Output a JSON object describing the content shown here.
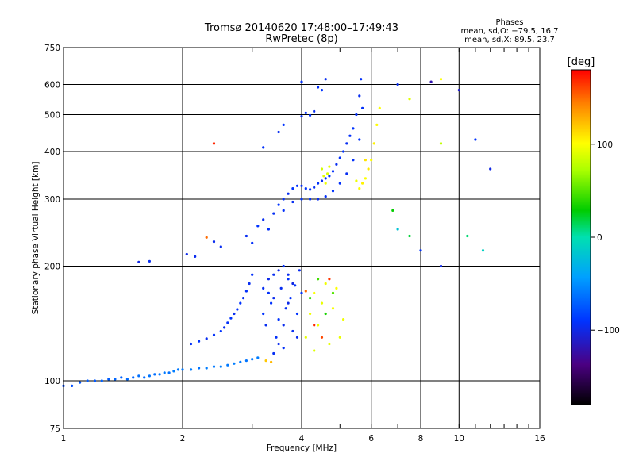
{
  "header": {
    "title_line1": "Tromsø 20140620 17:48:00–17:49:43",
    "title_line2": "RwPretec (8p)"
  },
  "phase_box": {
    "label": "Phases",
    "line_o": "mean, sd,O: −79.5, 16.7",
    "line_x": "mean, sd,X:  89.5, 23.7"
  },
  "colorbar": {
    "label": "[deg]",
    "range": [
      -180,
      180
    ],
    "ticks": [
      {
        "value": 100,
        "label": "100"
      },
      {
        "value": 0,
        "label": "0"
      },
      {
        "value": -100,
        "label": "−100"
      }
    ]
  },
  "chart_data": {
    "type": "scatter",
    "title": "Tromsø 20140620 17:48:00–17:49:43",
    "subtitle": "RwPretec (8p)",
    "xlabel": "Frequency [MHz]",
    "ylabel": "Stationary phase Virtual Height [km]",
    "xscale": "log",
    "yscale": "log",
    "xlim": [
      1,
      16
    ],
    "ylim": [
      75,
      750
    ],
    "grid": true,
    "x_ticks": [
      {
        "value": 1,
        "label": "1"
      },
      {
        "value": 2,
        "label": "2"
      },
      {
        "value": 4,
        "label": "4"
      },
      {
        "value": 6,
        "label": "6"
      },
      {
        "value": 8,
        "label": "8"
      },
      {
        "value": 10,
        "label": "10"
      },
      {
        "value": 16,
        "label": "16"
      }
    ],
    "y_ticks": [
      {
        "value": 75,
        "label": "75"
      },
      {
        "value": 100,
        "label": "100"
      },
      {
        "value": 200,
        "label": "200"
      },
      {
        "value": 300,
        "label": "300"
      },
      {
        "value": 400,
        "label": "400"
      },
      {
        "value": 500,
        "label": "500"
      },
      {
        "value": 600,
        "label": "600"
      },
      {
        "value": 750,
        "label": "750"
      }
    ],
    "series": [
      {
        "color_by": "phase",
        "points": [
          [
            1.0,
            97,
            -80
          ],
          [
            1.05,
            97,
            -78
          ],
          [
            1.1,
            99,
            -75
          ],
          [
            1.15,
            100,
            -72
          ],
          [
            1.2,
            100,
            -74
          ],
          [
            1.25,
            100,
            -70
          ],
          [
            1.3,
            101,
            -72
          ],
          [
            1.35,
            101,
            -68
          ],
          [
            1.4,
            102,
            -70
          ],
          [
            1.45,
            101,
            -66
          ],
          [
            1.5,
            102,
            -68
          ],
          [
            1.55,
            103,
            -64
          ],
          [
            1.6,
            102,
            -66
          ],
          [
            1.65,
            103,
            -62
          ],
          [
            1.7,
            104,
            -65
          ],
          [
            1.75,
            104,
            -62
          ],
          [
            1.8,
            105,
            -60
          ],
          [
            1.85,
            105,
            -63
          ],
          [
            1.9,
            106,
            -58
          ],
          [
            1.95,
            107,
            -60
          ],
          [
            2.0,
            107,
            -60
          ],
          [
            2.1,
            107,
            -58
          ],
          [
            2.2,
            108,
            -62
          ],
          [
            2.3,
            108,
            -58
          ],
          [
            2.4,
            109,
            -60
          ],
          [
            2.5,
            109,
            -57
          ],
          [
            2.6,
            110,
            -60
          ],
          [
            2.7,
            111,
            -58
          ],
          [
            2.8,
            112,
            -60
          ],
          [
            2.9,
            113,
            -62
          ],
          [
            3.0,
            114,
            -60
          ],
          [
            3.1,
            115,
            -58
          ],
          [
            3.25,
            113,
            120
          ],
          [
            3.35,
            112,
            125
          ],
          [
            2.1,
            125,
            -92
          ],
          [
            2.2,
            127,
            -90
          ],
          [
            2.3,
            129,
            -95
          ],
          [
            2.4,
            132,
            -92
          ],
          [
            2.5,
            135,
            -90
          ],
          [
            2.55,
            138,
            -95
          ],
          [
            2.6,
            142,
            -92
          ],
          [
            2.65,
            146,
            -90
          ],
          [
            2.7,
            150,
            -95
          ],
          [
            2.75,
            154,
            -92
          ],
          [
            2.8,
            160,
            -90
          ],
          [
            2.85,
            165,
            -94
          ],
          [
            2.9,
            172,
            -92
          ],
          [
            2.95,
            180,
            -95
          ],
          [
            3.0,
            190,
            -92
          ],
          [
            3.2,
            150,
            -90
          ],
          [
            3.25,
            140,
            -95
          ],
          [
            3.3,
            170,
            -92
          ],
          [
            3.35,
            160,
            -90
          ],
          [
            3.4,
            190,
            -95
          ],
          [
            3.45,
            130,
            -92
          ],
          [
            3.5,
            145,
            -90
          ],
          [
            3.55,
            175,
            -95
          ],
          [
            3.6,
            200,
            -92
          ],
          [
            3.65,
            155,
            -94
          ],
          [
            3.7,
            185,
            -90
          ],
          [
            3.75,
            165,
            -92
          ],
          [
            3.8,
            135,
            -95
          ],
          [
            3.85,
            178,
            -92
          ],
          [
            3.9,
            150,
            -90
          ],
          [
            3.95,
            195,
            -96
          ],
          [
            4.0,
            170,
            -90
          ],
          [
            3.3,
            185,
            -98
          ],
          [
            3.4,
            165,
            -96
          ],
          [
            3.5,
            195,
            -100
          ],
          [
            3.6,
            140,
            -96
          ],
          [
            3.7,
            160,
            -98
          ],
          [
            3.8,
            180,
            -100
          ],
          [
            3.9,
            130,
            -96
          ],
          [
            3.5,
            125,
            -96
          ],
          [
            3.4,
            118,
            -94
          ],
          [
            3.6,
            122,
            -92
          ],
          [
            3.7,
            190,
            -96
          ],
          [
            3.2,
            175,
            -94
          ],
          [
            2.9,
            240,
            -95
          ],
          [
            3.0,
            230,
            -92
          ],
          [
            3.1,
            255,
            -90
          ],
          [
            3.2,
            265,
            -95
          ],
          [
            3.3,
            250,
            -92
          ],
          [
            3.4,
            275,
            -94
          ],
          [
            3.5,
            290,
            -90
          ],
          [
            3.6,
            300,
            -92
          ],
          [
            3.7,
            310,
            -95
          ],
          [
            3.8,
            320,
            -90
          ],
          [
            3.9,
            325,
            -92
          ],
          [
            4.0,
            325,
            -95
          ],
          [
            4.1,
            320,
            -90
          ],
          [
            4.2,
            318,
            -92
          ],
          [
            4.3,
            322,
            -94
          ],
          [
            4.4,
            330,
            -92
          ],
          [
            4.5,
            335,
            -95
          ],
          [
            4.6,
            340,
            -92
          ],
          [
            4.7,
            345,
            -90
          ],
          [
            4.8,
            355,
            -92
          ],
          [
            4.9,
            370,
            -95
          ],
          [
            5.0,
            385,
            -92
          ],
          [
            5.1,
            400,
            -90
          ],
          [
            5.2,
            420,
            -95
          ],
          [
            5.3,
            440,
            -92
          ],
          [
            5.4,
            460,
            -90
          ],
          [
            5.5,
            500,
            -92
          ],
          [
            5.6,
            560,
            -95
          ],
          [
            5.65,
            620,
            -92
          ],
          [
            3.6,
            280,
            -92
          ],
          [
            3.8,
            295,
            -95
          ],
          [
            4.0,
            300,
            -90
          ],
          [
            4.2,
            300,
            -92
          ],
          [
            4.4,
            300,
            -95
          ],
          [
            4.6,
            305,
            -92
          ],
          [
            4.8,
            315,
            -90
          ],
          [
            5.0,
            330,
            -92
          ],
          [
            5.2,
            350,
            -95
          ],
          [
            5.4,
            380,
            -92
          ],
          [
            5.6,
            430,
            -90
          ],
          [
            5.7,
            520,
            -92
          ],
          [
            4.0,
            495,
            -95
          ],
          [
            4.1,
            505,
            -92
          ],
          [
            4.2,
            498,
            -90
          ],
          [
            4.3,
            510,
            -95
          ],
          [
            4.4,
            590,
            -92
          ],
          [
            4.5,
            580,
            -90
          ],
          [
            4.6,
            620,
            -95
          ],
          [
            4.0,
            610,
            -92
          ],
          [
            4.5,
            360,
            85
          ],
          [
            4.55,
            345,
            90
          ],
          [
            4.6,
            330,
            95
          ],
          [
            4.65,
            350,
            88
          ],
          [
            4.7,
            365,
            92
          ],
          [
            5.6,
            320,
            100
          ],
          [
            5.7,
            330,
            105
          ],
          [
            5.8,
            340,
            100
          ],
          [
            5.9,
            360,
            108
          ],
          [
            6.0,
            380,
            100
          ],
          [
            6.1,
            420,
            105
          ],
          [
            6.2,
            470,
            102
          ],
          [
            6.3,
            520,
            100
          ],
          [
            5.5,
            335,
            95
          ],
          [
            5.8,
            380,
            110
          ],
          [
            4.1,
            130,
            92
          ],
          [
            4.2,
            150,
            96
          ],
          [
            4.3,
            170,
            100
          ],
          [
            4.4,
            140,
            95
          ],
          [
            4.5,
            160,
            94
          ],
          [
            4.6,
            180,
            96
          ],
          [
            4.7,
            125,
            92
          ],
          [
            4.8,
            155,
            98
          ],
          [
            4.9,
            175,
            100
          ],
          [
            5.0,
            130,
            94
          ],
          [
            5.1,
            145,
            96
          ],
          [
            4.3,
            120,
            90
          ],
          [
            4.2,
            165,
            40
          ],
          [
            4.4,
            185,
            45
          ],
          [
            4.6,
            150,
            35
          ],
          [
            4.8,
            170,
            50
          ],
          [
            4.3,
            140,
            170
          ],
          [
            4.5,
            130,
            160
          ],
          [
            4.1,
            172,
            150
          ],
          [
            4.7,
            185,
            165
          ],
          [
            1.55,
            205,
            -100
          ],
          [
            1.65,
            206,
            -95
          ],
          [
            2.05,
            215,
            -98
          ],
          [
            2.15,
            212,
            -96
          ],
          [
            2.3,
            238,
            150
          ],
          [
            2.5,
            225,
            -95
          ],
          [
            2.4,
            232,
            -96
          ],
          [
            2.4,
            420,
            170
          ],
          [
            3.2,
            410,
            -92
          ],
          [
            3.5,
            450,
            -95
          ],
          [
            3.6,
            470,
            -90
          ],
          [
            6.8,
            280,
            30
          ],
          [
            7.0,
            250,
            -20
          ],
          [
            7.5,
            240,
            20
          ],
          [
            8.0,
            220,
            -90
          ],
          [
            9.0,
            200,
            -100
          ],
          [
            10.5,
            240,
            10
          ],
          [
            11.5,
            220,
            -10
          ],
          [
            7.0,
            600,
            -95
          ],
          [
            7.5,
            550,
            90
          ],
          [
            8.5,
            610,
            -120
          ],
          [
            9.0,
            620,
            100
          ],
          [
            10.0,
            580,
            -110
          ],
          [
            12.0,
            360,
            -100
          ],
          [
            9.0,
            420,
            80
          ],
          [
            11.0,
            430,
            -90
          ]
        ]
      }
    ]
  }
}
